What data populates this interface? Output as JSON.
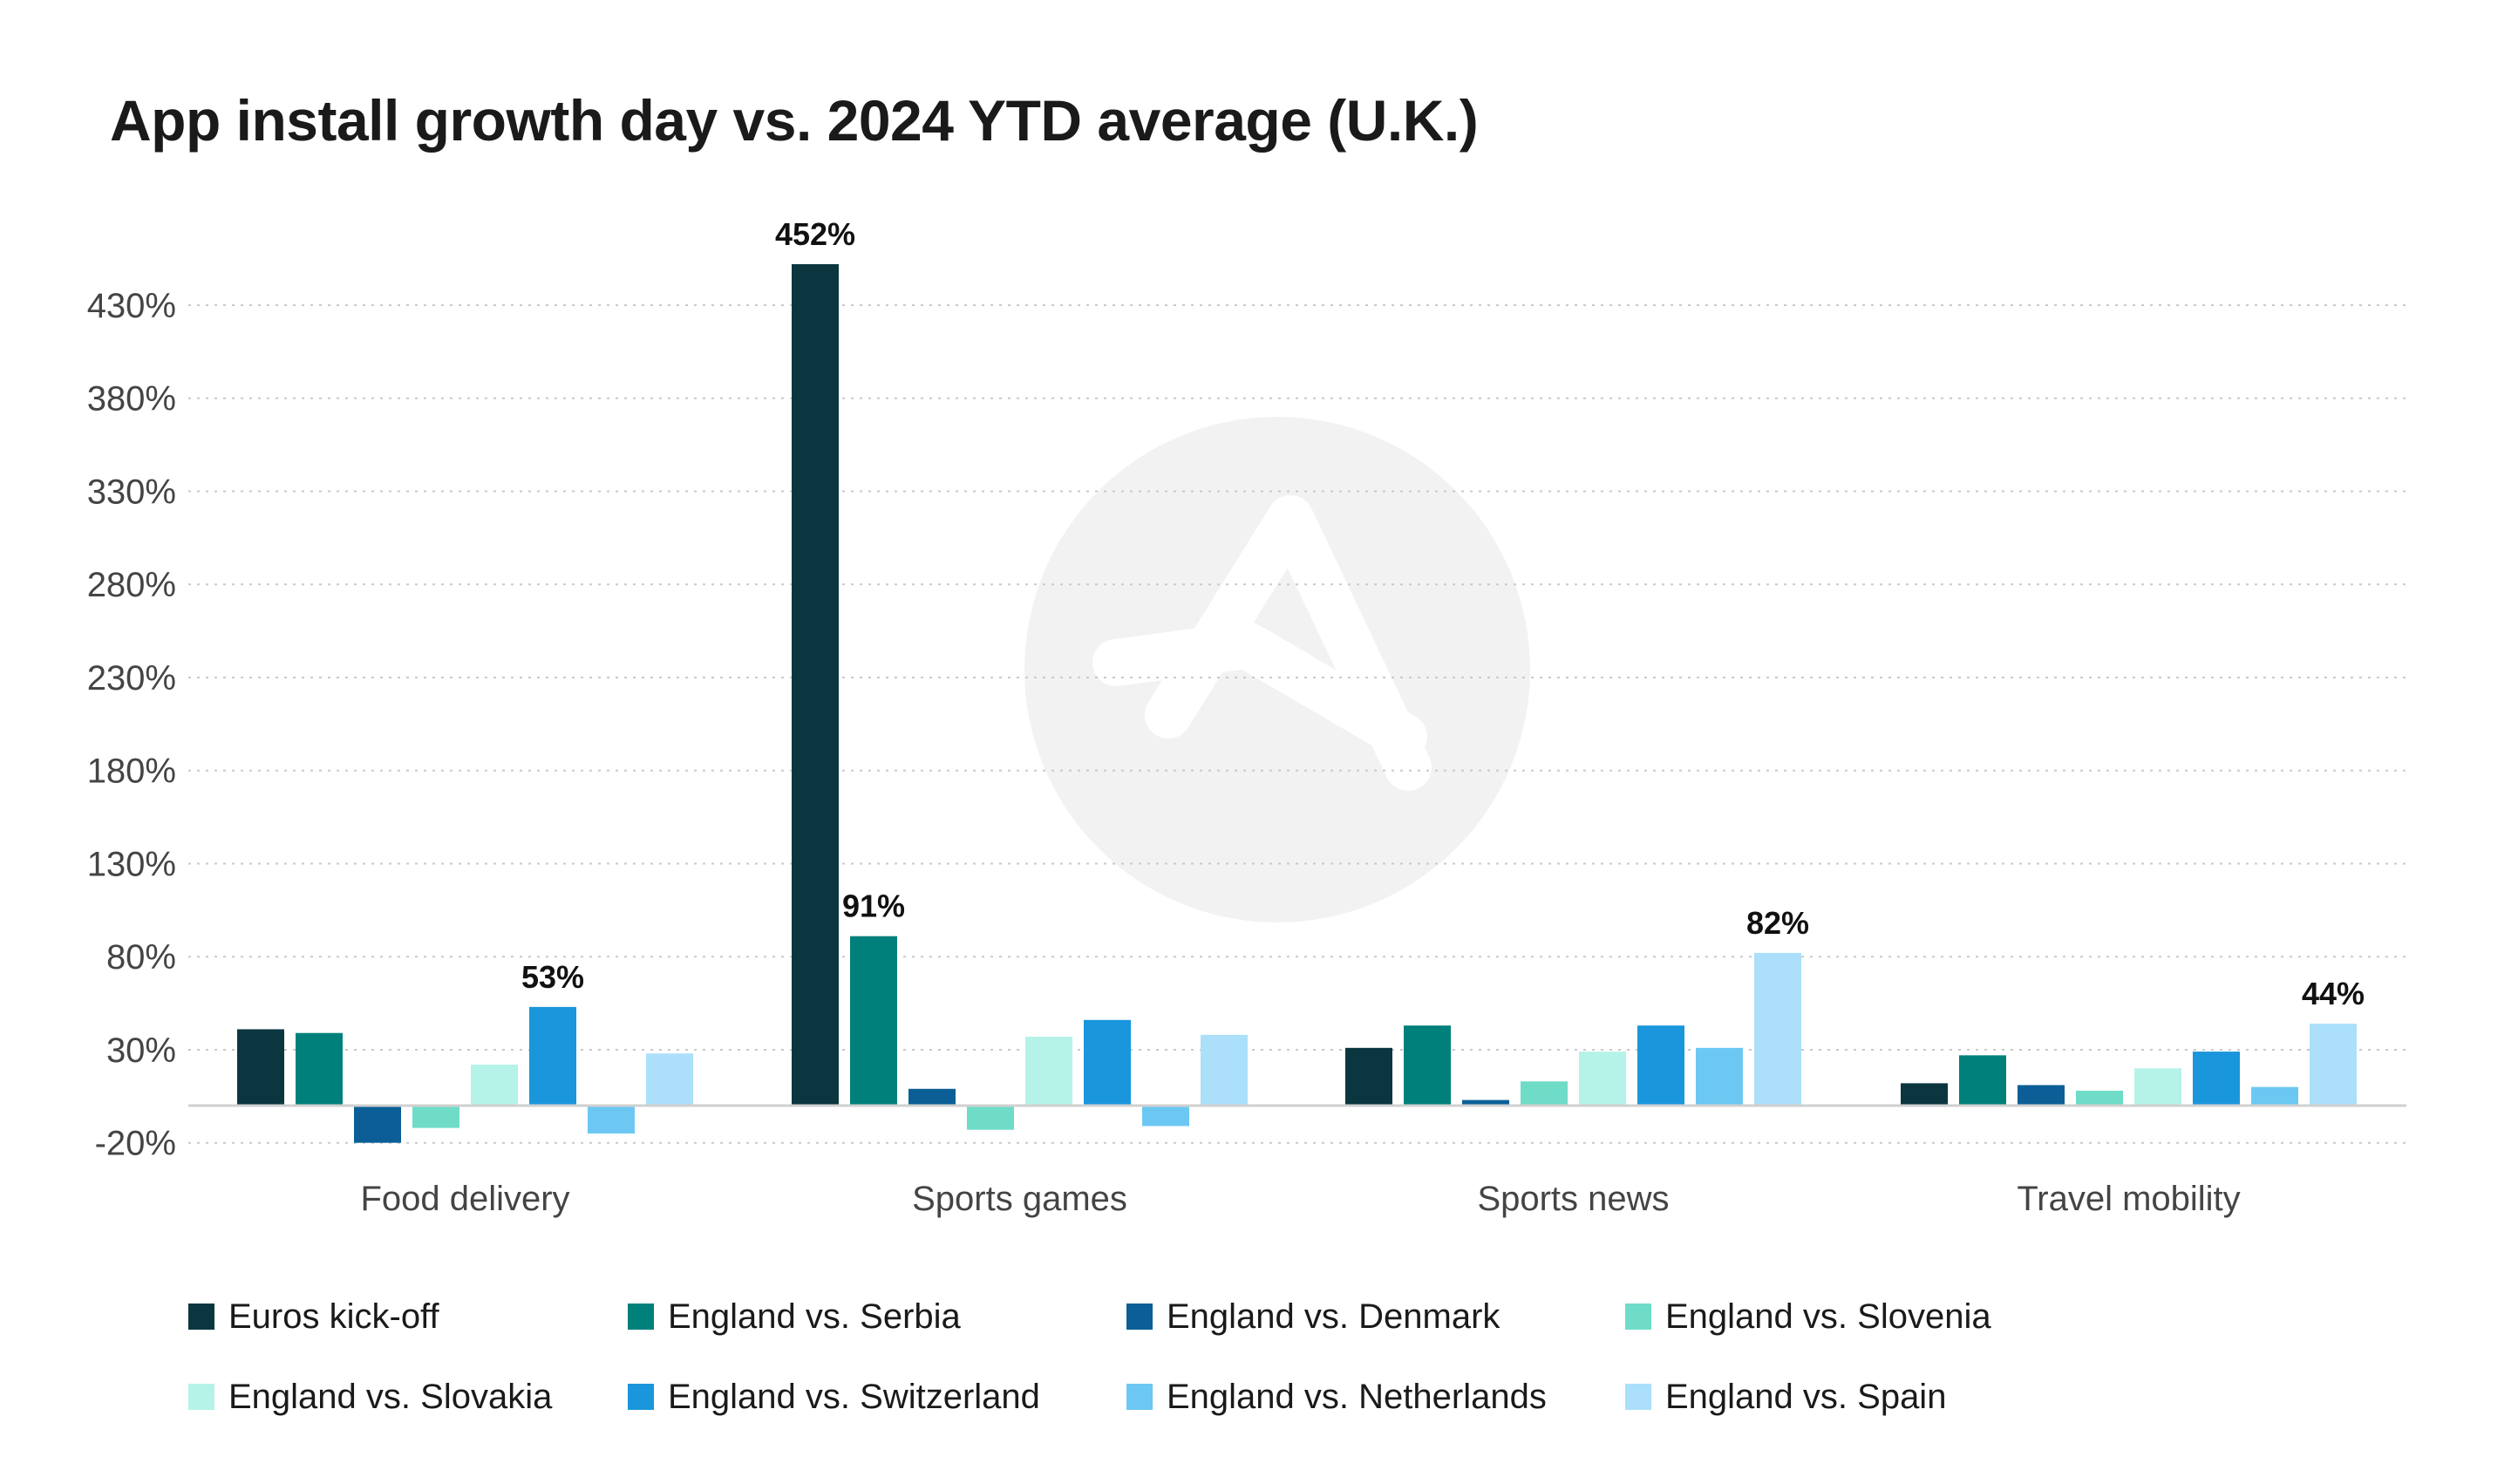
{
  "chart_data": {
    "type": "bar",
    "title": "App install growth day vs. 2024 YTD average (U.K.)",
    "xlabel": "",
    "ylabel": "",
    "categories": [
      "Food delivery",
      "Sports games",
      "Sports news",
      "Travel mobility"
    ],
    "series": [
      {
        "name": "Euros kick-off",
        "color": "#0b3640",
        "values": [
          41,
          452,
          31,
          12
        ]
      },
      {
        "name": "England vs. Serbia",
        "color": "#00807a",
        "values": [
          39,
          91,
          43,
          27
        ]
      },
      {
        "name": "England vs. Denmark",
        "color": "#0b5f96",
        "values": [
          -20,
          9,
          3,
          11
        ]
      },
      {
        "name": "England vs. Slovenia",
        "color": "#6fdcc8",
        "values": [
          -12,
          -13,
          13,
          8
        ]
      },
      {
        "name": "England vs. Slovakia",
        "color": "#b5f3e8",
        "values": [
          22,
          37,
          29,
          20
        ]
      },
      {
        "name": "England vs. Switzerland",
        "color": "#1a96dc",
        "values": [
          53,
          46,
          43,
          29
        ]
      },
      {
        "name": "England vs. Netherlands",
        "color": "#6cc8f3",
        "values": [
          -15,
          -11,
          31,
          10
        ]
      },
      {
        "name": "England vs. Spain",
        "color": "#abdffa",
        "values": [
          28,
          38,
          82,
          44
        ]
      }
    ],
    "data_labels": [
      {
        "category": "Food delivery",
        "series": "England vs. Switzerland",
        "text": "53%"
      },
      {
        "category": "Sports games",
        "series": "Euros kick-off",
        "text": "452%"
      },
      {
        "category": "Sports games",
        "series": "England vs. Serbia",
        "text": "91%"
      },
      {
        "category": "Sports news",
        "series": "England vs. Spain",
        "text": "82%"
      },
      {
        "category": "Travel mobility",
        "series": "England vs. Spain",
        "text": "44%"
      }
    ],
    "yticks": [
      -20,
      30,
      80,
      130,
      180,
      230,
      280,
      330,
      380,
      430
    ],
    "ytick_labels": [
      "-20%",
      "30%",
      "80%",
      "130%",
      "180%",
      "230%",
      "280%",
      "330%",
      "380%",
      "430%"
    ],
    "ylim": [
      -20,
      452
    ],
    "grid": true,
    "legend_position": "bottom"
  }
}
